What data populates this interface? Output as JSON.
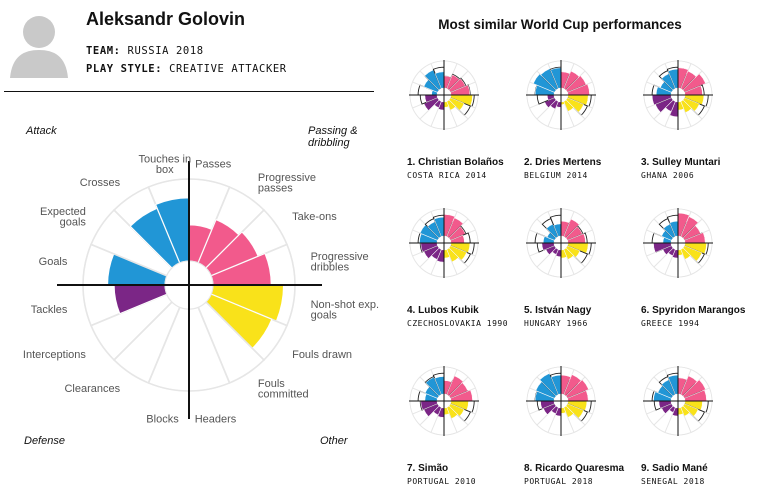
{
  "player": {
    "name": "Aleksandr Golovin",
    "team_label": "TEAM:",
    "team": "RUSSIA 2018",
    "style_label": "PLAY STYLE:",
    "style": "CREATIVE ATTACKER"
  },
  "similar_title": "Most similar World Cup performances",
  "colors": {
    "attack": "#2196d6",
    "passing": "#f25a8c",
    "other": "#f9e21a",
    "defense": "#7b2686",
    "ring": "#e6e6e6",
    "axis": "#111111"
  },
  "chart_data": {
    "type": "polar-bar",
    "quadrants": {
      "attack": "Attack",
      "passing": "Passing & dribbling",
      "other": "Other",
      "defense": "Defense"
    },
    "categories": [
      {
        "label": "Passes",
        "group": "passing",
        "value": 0.44
      },
      {
        "label": "Progressive passes",
        "group": "passing",
        "value": 0.57
      },
      {
        "label": "Take-ons",
        "group": "passing",
        "value": 0.62
      },
      {
        "label": "Progressive dribbles",
        "group": "passing",
        "value": 0.71
      },
      {
        "label": "Non-shot exp. goals",
        "group": "other",
        "value": 0.86
      },
      {
        "label": "Fouls drawn",
        "group": "other",
        "value": 0.8
      },
      {
        "label": "Fouls committed",
        "group": "other",
        "value": 0.0
      },
      {
        "label": "Headers",
        "group": "other",
        "value": 0.0
      },
      {
        "label": "Blocks",
        "group": "defense",
        "value": 0.0
      },
      {
        "label": "Clearances",
        "group": "defense",
        "value": 0.0
      },
      {
        "label": "Interceptions",
        "group": "defense",
        "value": 0.0
      },
      {
        "label": "Tackles",
        "group": "defense",
        "value": 0.62
      },
      {
        "label": "Goals",
        "group": "attack",
        "value": 0.7
      },
      {
        "label": "Expected goals",
        "group": "attack",
        "value": 0.0
      },
      {
        "label": "Crosses",
        "group": "attack",
        "value": 0.72
      },
      {
        "label": "Touches in box",
        "group": "attack",
        "value": 0.77
      }
    ]
  },
  "similar": [
    {
      "name": "1. Christian Bolaños",
      "sub": "COSTA RICA 2014",
      "values": [
        0.45,
        0.55,
        0.6,
        0.7,
        0.8,
        0.55,
        0.35,
        0.2,
        0.3,
        0.25,
        0.55,
        0.45,
        0.2,
        0.55,
        0.75,
        0.6
      ]
    },
    {
      "name": "2. Dries Mertens",
      "sub": "BELGIUM 2014",
      "values": [
        0.6,
        0.7,
        0.75,
        0.8,
        0.75,
        0.65,
        0.4,
        0.1,
        0.2,
        0.3,
        0.4,
        0.25,
        0.7,
        0.85,
        0.8,
        0.75
      ]
    },
    {
      "name": "3. Sulley Muntari",
      "sub": "GHANA 2006",
      "values": [
        0.75,
        0.7,
        0.85,
        0.65,
        0.7,
        0.6,
        0.45,
        0.3,
        0.55,
        0.4,
        0.65,
        0.7,
        0.55,
        0.45,
        0.6,
        0.7
      ]
    },
    {
      "name": "4. Lubos Kubik",
      "sub": "CZECHOSLOVAKIA 1990",
      "values": [
        0.8,
        0.75,
        0.6,
        0.5,
        0.7,
        0.65,
        0.5,
        0.3,
        0.45,
        0.4,
        0.55,
        0.6,
        0.65,
        0.7,
        0.6,
        0.7
      ]
    },
    {
      "name": "5. István Nagy",
      "sub": "HUNGARY 1966",
      "values": [
        0.55,
        0.7,
        0.6,
        0.65,
        0.75,
        0.5,
        0.4,
        0.3,
        0.25,
        0.2,
        0.35,
        0.45,
        0.4,
        0.3,
        0.5,
        0.45
      ]
    },
    {
      "name": "6. Spyridon Marangos",
      "sub": "GREECE 1994",
      "values": [
        0.85,
        0.8,
        0.65,
        0.75,
        0.8,
        0.7,
        0.4,
        0.2,
        0.3,
        0.25,
        0.35,
        0.65,
        0.3,
        0.4,
        0.5,
        0.55
      ]
    },
    {
      "name": "7. Simão",
      "sub": "PORTUGAL 2010",
      "values": [
        0.5,
        0.75,
        0.7,
        0.8,
        0.65,
        0.55,
        0.45,
        0.25,
        0.35,
        0.3,
        0.55,
        0.6,
        0.45,
        0.5,
        0.7,
        0.65
      ]
    },
    {
      "name": "8. Ricardo Quaresma",
      "sub": "PORTUGAL 2018",
      "values": [
        0.7,
        0.8,
        0.85,
        0.75,
        0.7,
        0.65,
        0.4,
        0.2,
        0.3,
        0.25,
        0.45,
        0.5,
        0.7,
        0.75,
        0.85,
        0.7
      ]
    },
    {
      "name": "9. Sadio Mané",
      "sub": "SENEGAL 2018",
      "values": [
        0.6,
        0.75,
        0.85,
        0.8,
        0.65,
        0.55,
        0.35,
        0.25,
        0.3,
        0.2,
        0.4,
        0.45,
        0.65,
        0.55,
        0.6,
        0.7
      ]
    }
  ]
}
